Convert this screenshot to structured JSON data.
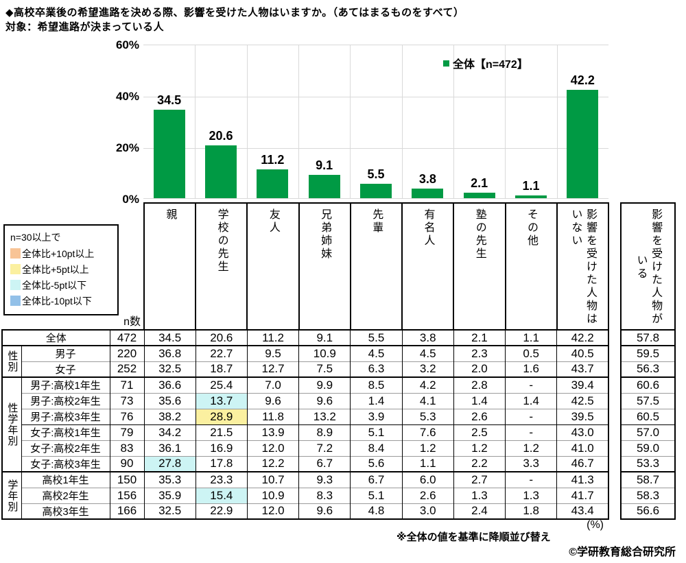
{
  "title": "◆高校卒業後の希望進路を決める際、影響を受けた人物はいますか。（あてはまるものをすべて）",
  "subtitle": "対象：希望進路が決まっている人",
  "chart_data": {
    "type": "bar",
    "title": "",
    "categories": [
      "親",
      "学校の先生",
      "友人",
      "兄弟姉妹",
      "先輩",
      "有名人",
      "塾の先生",
      "その他",
      "影響を受けた人物はいない"
    ],
    "values": [
      34.5,
      20.6,
      11.2,
      9.1,
      5.5,
      3.8,
      2.1,
      1.1,
      42.2
    ],
    "series_name": "全体【n=472】",
    "xlabel": "",
    "ylabel": "",
    "ylim": [
      0,
      60
    ],
    "y_ticks": [
      "60%",
      "40%",
      "20%",
      "0%"
    ],
    "grid": true,
    "legend_position": "top-right-inside",
    "bar_color": "#009A44"
  },
  "chart": {
    "legend_label": "全体【n=472】"
  },
  "threshold_legend": {
    "title": "n=30以上で",
    "items": [
      {
        "label": "全体比+10pt以上",
        "color": "#F8C496",
        "key": "orange"
      },
      {
        "label": "全体比+5pt以上",
        "color": "#FBF0A0",
        "key": "yellow"
      },
      {
        "label": "全体比-5pt以下",
        "color": "#CDF4F4",
        "key": "cyan"
      },
      {
        "label": "全体比-10pt以下",
        "color": "#92C0E8",
        "key": "blue"
      }
    ]
  },
  "table": {
    "n_header": "n数",
    "columns": [
      "親",
      "学校の先生",
      "友人",
      "兄弟姉妹",
      "先輩",
      "有名人",
      "塾の先生",
      "その他",
      "影響を受けた人物は\nいない"
    ],
    "extra_column": "影響を受けた人物が\nいる",
    "unit_label": "(%)",
    "groups": [
      {
        "label": "",
        "rows": [
          {
            "label": "全体",
            "n": "472",
            "values": [
              "34.5",
              "20.6",
              "11.2",
              "9.1",
              "5.5",
              "3.8",
              "2.1",
              "1.1",
              "42.2"
            ],
            "extra": "57.8",
            "hl": {}
          }
        ]
      },
      {
        "label": "性別",
        "rows": [
          {
            "label": "男子",
            "n": "220",
            "values": [
              "36.8",
              "22.7",
              "9.5",
              "10.9",
              "4.5",
              "4.5",
              "2.3",
              "0.5",
              "40.5"
            ],
            "extra": "59.5",
            "hl": {}
          },
          {
            "label": "女子",
            "n": "252",
            "values": [
              "32.5",
              "18.7",
              "12.7",
              "7.5",
              "6.3",
              "3.2",
              "2.0",
              "1.6",
              "43.7"
            ],
            "extra": "56.3",
            "hl": {}
          }
        ]
      },
      {
        "label": "性学年別",
        "subdividers": [
          3
        ],
        "rows": [
          {
            "label": "男子:高校1年生",
            "n": "71",
            "values": [
              "36.6",
              "25.4",
              "7.0",
              "9.9",
              "8.5",
              "4.2",
              "2.8",
              "-",
              "39.4"
            ],
            "extra": "60.6",
            "hl": {}
          },
          {
            "label": "男子:高校2年生",
            "n": "73",
            "values": [
              "35.6",
              "13.7",
              "9.6",
              "9.6",
              "1.4",
              "4.1",
              "1.4",
              "1.4",
              "42.5"
            ],
            "extra": "57.5",
            "hl": {
              "1": "cyan"
            }
          },
          {
            "label": "男子:高校3年生",
            "n": "76",
            "values": [
              "38.2",
              "28.9",
              "11.8",
              "13.2",
              "3.9",
              "5.3",
              "2.6",
              "-",
              "39.5"
            ],
            "extra": "60.5",
            "hl": {
              "1": "yellow"
            }
          },
          {
            "label": "女子:高校1年生",
            "n": "79",
            "values": [
              "34.2",
              "21.5",
              "13.9",
              "8.9",
              "5.1",
              "7.6",
              "2.5",
              "-",
              "43.0"
            ],
            "extra": "57.0",
            "hl": {}
          },
          {
            "label": "女子:高校2年生",
            "n": "83",
            "values": [
              "36.1",
              "16.9",
              "12.0",
              "7.2",
              "8.4",
              "1.2",
              "1.2",
              "1.2",
              "41.0"
            ],
            "extra": "59.0",
            "hl": {}
          },
          {
            "label": "女子:高校3年生",
            "n": "90",
            "values": [
              "27.8",
              "17.8",
              "12.2",
              "6.7",
              "5.6",
              "1.1",
              "2.2",
              "3.3",
              "46.7"
            ],
            "extra": "53.3",
            "hl": {
              "0": "cyan"
            }
          }
        ]
      },
      {
        "label": "学年別",
        "rows": [
          {
            "label": "高校1年生",
            "n": "150",
            "values": [
              "35.3",
              "23.3",
              "10.7",
              "9.3",
              "6.7",
              "6.0",
              "2.7",
              "-",
              "41.3"
            ],
            "extra": "58.7",
            "hl": {}
          },
          {
            "label": "高校2年生",
            "n": "156",
            "values": [
              "35.9",
              "15.4",
              "10.9",
              "8.3",
              "5.1",
              "2.6",
              "1.3",
              "1.3",
              "41.7"
            ],
            "extra": "58.3",
            "hl": {
              "1": "cyan"
            }
          },
          {
            "label": "高校3年生",
            "n": "166",
            "values": [
              "32.5",
              "22.9",
              "12.0",
              "9.6",
              "4.8",
              "3.0",
              "2.4",
              "1.8",
              "43.4"
            ],
            "extra": "56.6",
            "hl": {}
          }
        ]
      }
    ]
  },
  "footnote": "※全体の値を基準に降順並び替え",
  "copyright": "©学研教育総合研究所"
}
